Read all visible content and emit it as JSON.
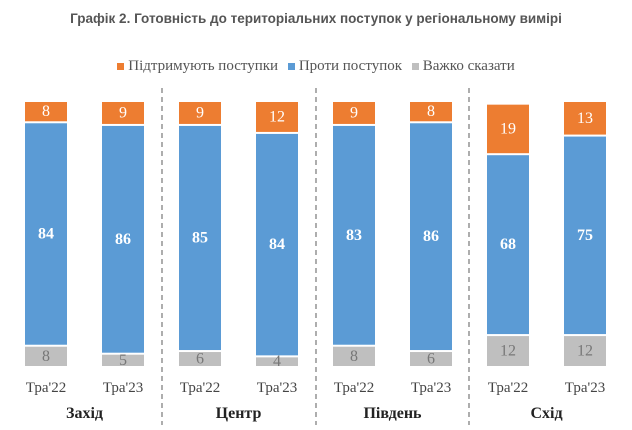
{
  "chart_data": {
    "type": "bar",
    "stacked": true,
    "title": "Графік 2. Готовність до територіальних поступок у регіональному вимірі",
    "groups": [
      "Захід",
      "Центр",
      "Південь",
      "Схід"
    ],
    "categories": [
      "Тра'22",
      "Тра'23"
    ],
    "series": [
      {
        "name": "Підтримують поступки",
        "color": "#ED7D31",
        "values": [
          [
            8,
            9
          ],
          [
            9,
            12
          ],
          [
            9,
            8
          ],
          [
            19,
            13
          ]
        ]
      },
      {
        "name": "Проти поступок",
        "color": "#5B9BD5",
        "values": [
          [
            84,
            86
          ],
          [
            85,
            84
          ],
          [
            83,
            86
          ],
          [
            68,
            75
          ]
        ]
      },
      {
        "name": "Важко сказати",
        "color": "#BFBFBF",
        "values": [
          [
            8,
            5
          ],
          [
            6,
            4
          ],
          [
            8,
            6
          ],
          [
            12,
            12
          ]
        ]
      }
    ],
    "stack_order_bottom_to_top": [
      "Важко сказати",
      "Проти поступок",
      "Підтримують поступки"
    ],
    "ylim": [
      0,
      100
    ],
    "grid": false,
    "legend_position": "top",
    "group_separators": "dashed"
  }
}
